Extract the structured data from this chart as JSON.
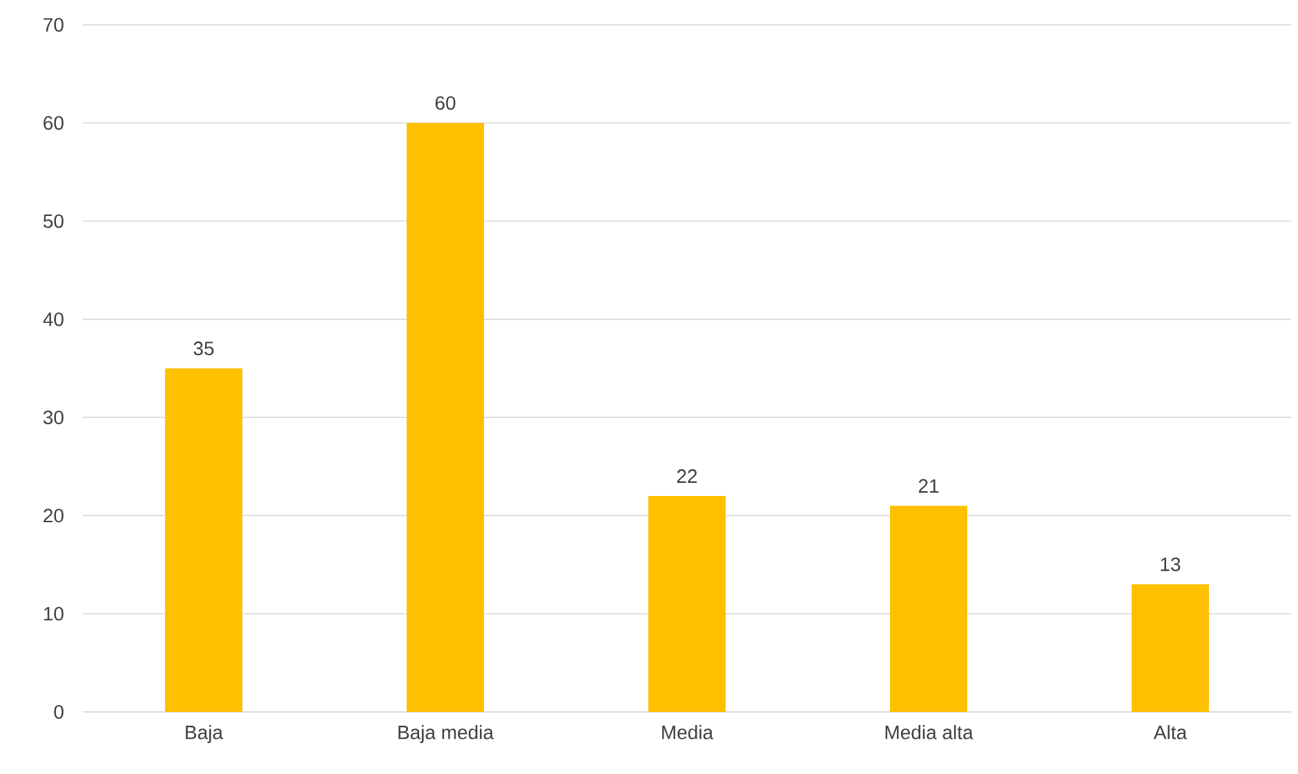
{
  "chart_data": {
    "type": "bar",
    "categories": [
      "Baja",
      "Baja media",
      "Media",
      "Media alta",
      "Alta"
    ],
    "values": [
      35,
      60,
      22,
      21,
      13
    ],
    "color": "#ffc000",
    "ylim": [
      0,
      70
    ],
    "yticks": [
      0,
      10,
      20,
      30,
      40,
      50,
      60,
      70
    ],
    "grid": "y",
    "data_labels": true
  }
}
